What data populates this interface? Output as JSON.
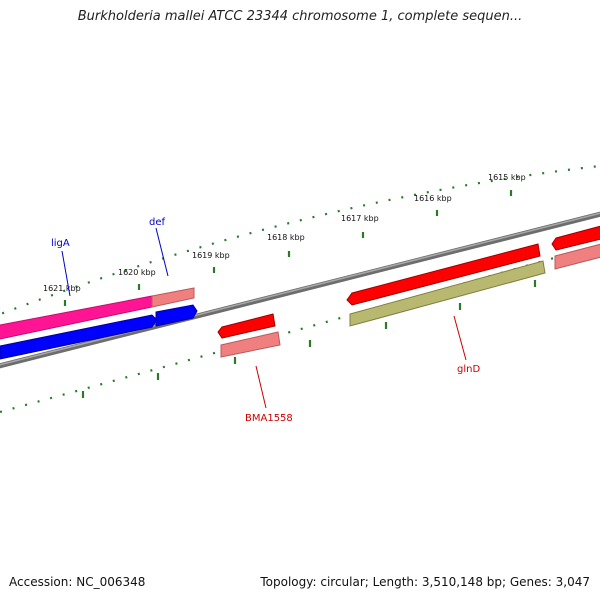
{
  "title": "Burkholderia mallei ATCC 23344 chromosome 1, complete sequen...",
  "footer": {
    "accession": "Accession: NC_006348",
    "summary": "Topology: circular; Length: 3,510,148 bp; Genes: 3,047"
  },
  "ticks": [
    {
      "label": "1615 kbp"
    },
    {
      "label": "1616 kbp"
    },
    {
      "label": "1617 kbp"
    },
    {
      "label": "1618 kbp"
    },
    {
      "label": "1619 kbp"
    },
    {
      "label": "1620 kbp"
    },
    {
      "label": "1621 kbp"
    }
  ],
  "genes": [
    {
      "label": "ligA",
      "color": "#0000cc"
    },
    {
      "label": "def",
      "color": "#0000cc"
    },
    {
      "label": "BMA1558",
      "color": "#cc0000"
    },
    {
      "label": "glnD",
      "color": "#cc0000"
    }
  ],
  "colors": {
    "backbone": "#808080",
    "tick": "#2a7a2a",
    "forward_gene": "#ff0000",
    "forward_cds": "#f08080",
    "reverse_gene": "#0000ff",
    "pink_gene": "#ff1493",
    "olive_cds": "#b8b870"
  }
}
